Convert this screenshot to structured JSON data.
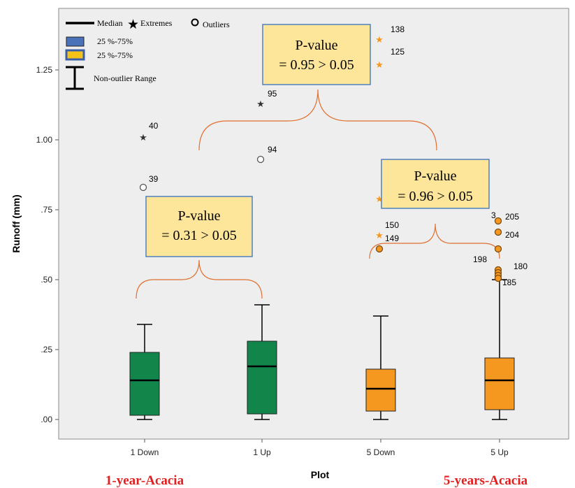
{
  "chart_data": {
    "type": "boxplot",
    "xlabel": "Plot",
    "ylabel": "Runoff (mm)",
    "ylim": [
      -0.07,
      1.47
    ],
    "yticks": [
      {
        "value": 0.0,
        "label": ".00"
      },
      {
        "value": 0.25,
        "label": ".25"
      },
      {
        "value": 0.5,
        "label": ".50"
      },
      {
        "value": 0.75,
        "label": ".75"
      },
      {
        "value": 1.0,
        "label": "1.00"
      },
      {
        "value": 1.25,
        "label": "1.25"
      }
    ],
    "categories": [
      "1 Down",
      "1 Up",
      "5 Down",
      "5 Up"
    ],
    "boxes": [
      {
        "category": "1 Down",
        "group": "green",
        "whisker_low": 0.0,
        "q1": 0.015,
        "median": 0.14,
        "q3": 0.24,
        "whisker_high": 0.34,
        "outliers": [
          {
            "value": 0.83,
            "label": "39"
          }
        ],
        "extremes": [
          {
            "value": 1.01,
            "label": "40"
          }
        ]
      },
      {
        "category": "1 Up",
        "group": "green",
        "whisker_low": 0.0,
        "q1": 0.02,
        "median": 0.19,
        "q3": 0.28,
        "whisker_high": 0.41,
        "outliers": [
          {
            "value": 0.93,
            "label": "94"
          }
        ],
        "extremes": [
          {
            "value": 1.13,
            "label": "95"
          }
        ]
      },
      {
        "category": "5 Down",
        "group": "orange",
        "whisker_low": 0.0,
        "q1": 0.03,
        "median": 0.11,
        "q3": 0.18,
        "whisker_high": 0.37,
        "outliers": [
          {
            "value": 0.61,
            "label": "149"
          }
        ],
        "extremes": [
          {
            "value": 0.66,
            "label": "150"
          },
          {
            "value": 0.79,
            "label": ""
          },
          {
            "value": 1.27,
            "label": "125"
          },
          {
            "value": 1.36,
            "label": "138"
          }
        ]
      },
      {
        "category": "5 Up",
        "group": "orange",
        "whisker_low": 0.0,
        "q1": 0.035,
        "median": 0.14,
        "q3": 0.22,
        "whisker_high": 0.5,
        "outliers": [
          {
            "value": 0.71,
            "label": "205"
          },
          {
            "value": 0.67,
            "label": "204"
          },
          {
            "value": 0.61,
            "label": ""
          },
          {
            "value": 0.535,
            "label": "180"
          },
          {
            "value": 0.525,
            "label": "198"
          },
          {
            "value": 0.515,
            "label": ""
          },
          {
            "value": 0.505,
            "label": "185"
          }
        ],
        "extremes": []
      }
    ],
    "extra_point_labels": [
      {
        "category": "5 Up",
        "value": 0.73,
        "label": "3"
      }
    ],
    "colors": {
      "green": "#12854a",
      "orange": "#f5981f",
      "frame_bg": "#eeeeee",
      "bracket": "#e07030",
      "annotation_bg": "#fde59a",
      "annotation_border": "#4f80bd",
      "group_label": "#e31e1e"
    },
    "legend": {
      "median": "Median",
      "extremes": "Extremes",
      "outliers": "Outliers",
      "range_green": "25 %-75%",
      "range_orange": "25 %-75%",
      "non_outlier": "Non-outlier Range"
    },
    "annotations": [
      {
        "title": "P-value",
        "text": "= 0.31 > 0.05",
        "compares": [
          "1 Down",
          "1 Up"
        ]
      },
      {
        "title": "P-value",
        "text": "= 0.95 > 0.05",
        "compares": [
          "1-year",
          "5-years"
        ]
      },
      {
        "title": "P-value",
        "text": "= 0.96 > 0.05",
        "compares": [
          "5 Down",
          "5 Up"
        ]
      }
    ],
    "group_labels": [
      "1-year-Acacia",
      "5-years-Acacia"
    ]
  }
}
